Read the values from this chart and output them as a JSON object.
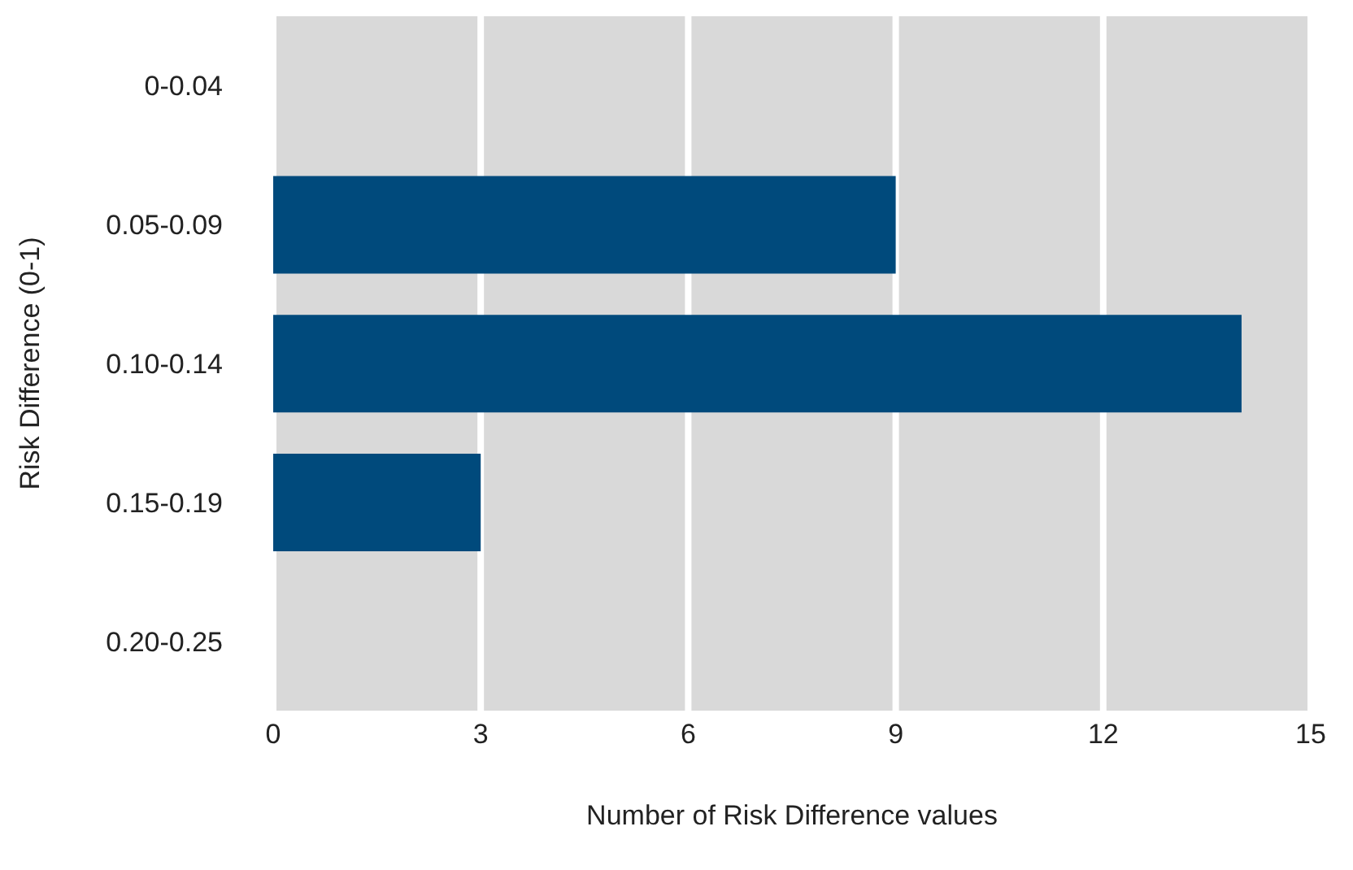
{
  "chart_data": {
    "type": "bar",
    "orientation": "horizontal",
    "categories": [
      "0-0.04",
      "0.05-0.09",
      "0.10-0.14",
      "0.15-0.19",
      "0.20-0.25"
    ],
    "values": [
      0,
      9,
      14,
      3,
      0
    ],
    "color": "#004a7c",
    "xlabel": "Number of Risk Difference values",
    "ylabel": "Risk Difference (0-1)",
    "xlim": [
      0,
      15
    ],
    "xticks": [
      0,
      3,
      6,
      9,
      12,
      15
    ],
    "grid": "x"
  }
}
